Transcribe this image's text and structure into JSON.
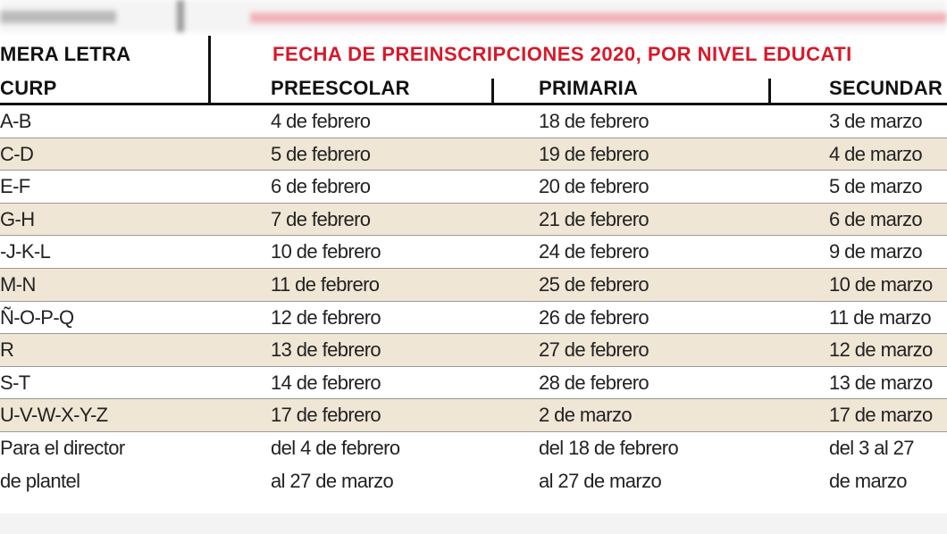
{
  "header": {
    "first_column": [
      "MERA LETRA",
      "CURP"
    ],
    "title": "FECHA DE PREINSCRIPCIONES 2020, POR NIVEL EDUCATI",
    "columns": [
      "PREESCOLAR",
      "PRIMARIA",
      "SECUNDAR"
    ]
  },
  "table": {
    "rows": [
      [
        "A-B",
        "4 de febrero",
        "18 de febrero",
        "3 de marzo"
      ],
      [
        "C-D",
        "5 de febrero",
        "19 de febrero",
        "4 de marzo"
      ],
      [
        "E-F",
        "6 de febrero",
        "20 de febrero",
        "5 de marzo"
      ],
      [
        "G-H",
        "7 de febrero",
        "21 de febrero",
        "6 de marzo"
      ],
      [
        "-J-K-L",
        "10 de febrero",
        "24 de febrero",
        "9 de marzo"
      ],
      [
        "M-N",
        "11 de febrero",
        "25 de febrero",
        "10 de marzo"
      ],
      [
        "Ñ-O-P-Q",
        "12 de febrero",
        "26 de febrero",
        "11 de marzo"
      ],
      [
        "R",
        "13 de febrero",
        "27 de febrero",
        "12 de marzo"
      ],
      [
        "S-T",
        "14 de febrero",
        "28 de febrero",
        "13 de marzo"
      ],
      [
        "U-V-W-X-Y-Z",
        "17 de febrero",
        "2 de marzo",
        "17 de marzo"
      ],
      [
        [
          "Para el director",
          "de plantel"
        ],
        [
          "del 4 de febrero",
          "al 27 de marzo"
        ],
        [
          "del 18 de febrero",
          "al 27 de marzo"
        ],
        [
          "del 3 al 27",
          "de marzo"
        ]
      ]
    ]
  }
}
